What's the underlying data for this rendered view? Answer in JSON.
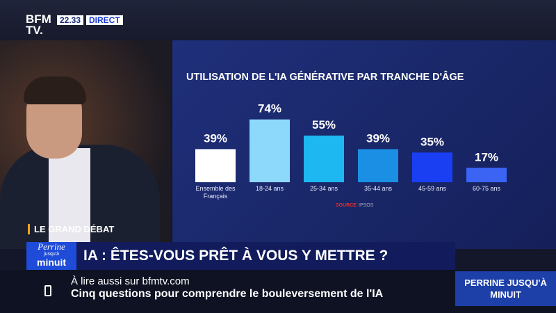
{
  "channel": {
    "logo_top": "BFM",
    "logo_bottom": "TV.",
    "time": "22.33",
    "live": "DIRECT"
  },
  "show": {
    "segment": "LE GRAND DÉBAT",
    "logo_name": "Perrine",
    "logo_small": "jusqu'à",
    "logo_end": "minuit",
    "headline": "IA : ÊTES-VOUS PRÊT À VOUS Y METTRE ?",
    "side_box": "PERRINE JUSQU'À MINUIT"
  },
  "ticker": {
    "kicker": "À lire aussi sur bfmtv.com",
    "text": "Cinq questions pour comprendre le bouleversement de l'IA"
  },
  "chart_data": {
    "type": "bar",
    "title": "UTILISATION DE L'IA GÉNÉRATIVE PAR TRANCHE D'ÂGE",
    "categories": [
      "Ensemble des Français",
      "18-24 ans",
      "25-34 ans",
      "35-44 ans",
      "45-59 ans",
      "60-75 ans"
    ],
    "values": [
      39,
      74,
      55,
      39,
      35,
      17
    ],
    "value_labels": [
      "39%",
      "74%",
      "55%",
      "39%",
      "35%",
      "17%"
    ],
    "colors": [
      "#ffffff",
      "#8dd9fb",
      "#1db8f2",
      "#1b8fe3",
      "#1a3ff2",
      "#3b63f4"
    ],
    "source_label": "SOURCE",
    "source": "IPSOS"
  }
}
